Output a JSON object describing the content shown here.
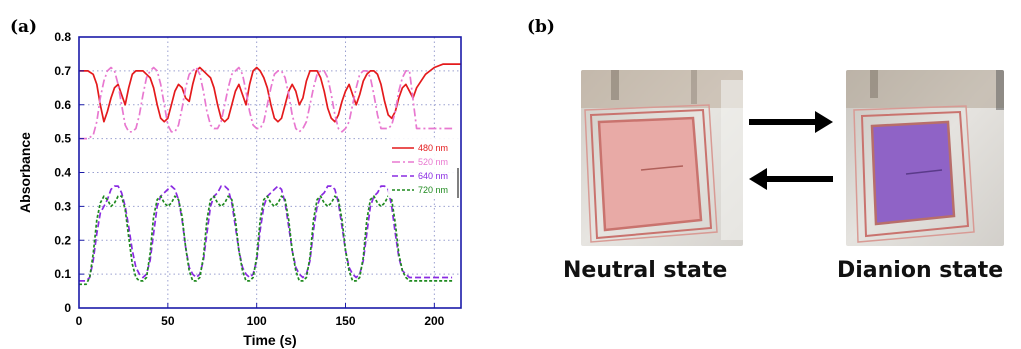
{
  "panels": {
    "a": "(a)",
    "b": "(b)"
  },
  "photos": {
    "neutral_label": "Neutral state",
    "dianion_label": "Dianion state"
  },
  "chart_data": {
    "type": "line",
    "xlabel": "Time (s)",
    "ylabel": "Absorbance",
    "xlim": [
      0,
      215
    ],
    "ylim": [
      0,
      0.8
    ],
    "xticks": [
      0,
      50,
      100,
      150,
      200
    ],
    "yticks": [
      0,
      0.1,
      0.2,
      0.3,
      0.4,
      0.5,
      0.6,
      0.7,
      0.8
    ],
    "grid": "dotted",
    "legend_position": "right",
    "series": [
      {
        "name": "480 nm",
        "color": "#e41a1c",
        "style": "solid",
        "x": [
          0,
          5,
          8,
          10,
          12,
          14,
          16,
          18,
          20,
          22,
          24,
          26,
          28,
          30,
          32,
          34,
          36,
          38,
          40,
          42,
          44,
          46,
          48,
          50,
          52,
          54,
          56,
          58,
          60,
          62,
          64,
          66,
          68,
          70,
          72,
          74,
          76,
          78,
          80,
          82,
          84,
          86,
          88,
          90,
          92,
          94,
          96,
          98,
          100,
          102,
          104,
          106,
          108,
          110,
          112,
          114,
          116,
          118,
          120,
          122,
          124,
          126,
          128,
          130,
          132,
          134,
          136,
          138,
          140,
          142,
          144,
          146,
          148,
          150,
          152,
          154,
          156,
          158,
          160,
          162,
          164,
          166,
          168,
          170,
          172,
          174,
          176,
          178,
          180,
          182,
          184,
          186,
          188,
          190,
          195,
          200,
          205,
          210,
          215
        ],
        "y": [
          0.7,
          0.7,
          0.69,
          0.66,
          0.6,
          0.55,
          0.58,
          0.62,
          0.65,
          0.66,
          0.63,
          0.6,
          0.65,
          0.69,
          0.7,
          0.7,
          0.7,
          0.69,
          0.68,
          0.65,
          0.6,
          0.56,
          0.55,
          0.56,
          0.6,
          0.64,
          0.66,
          0.65,
          0.62,
          0.61,
          0.66,
          0.7,
          0.71,
          0.7,
          0.69,
          0.68,
          0.65,
          0.6,
          0.56,
          0.55,
          0.56,
          0.6,
          0.64,
          0.66,
          0.63,
          0.6,
          0.66,
          0.7,
          0.71,
          0.7,
          0.68,
          0.65,
          0.6,
          0.56,
          0.55,
          0.56,
          0.6,
          0.64,
          0.66,
          0.64,
          0.6,
          0.62,
          0.67,
          0.7,
          0.7,
          0.7,
          0.68,
          0.64,
          0.59,
          0.56,
          0.55,
          0.57,
          0.61,
          0.64,
          0.66,
          0.63,
          0.6,
          0.63,
          0.67,
          0.69,
          0.7,
          0.7,
          0.69,
          0.66,
          0.61,
          0.57,
          0.56,
          0.58,
          0.62,
          0.65,
          0.66,
          0.64,
          0.62,
          0.65,
          0.69,
          0.71,
          0.72,
          0.72,
          0.72
        ]
      },
      {
        "name": "520 nm",
        "color": "#e878d0",
        "style": "dashdot",
        "x": [
          0,
          5,
          8,
          10,
          12,
          14,
          16,
          18,
          20,
          22,
          24,
          26,
          28,
          30,
          32,
          34,
          36,
          38,
          40,
          42,
          44,
          46,
          48,
          50,
          52,
          54,
          56,
          58,
          60,
          62,
          64,
          66,
          68,
          70,
          72,
          74,
          76,
          78,
          80,
          82,
          84,
          86,
          88,
          90,
          92,
          94,
          96,
          98,
          100,
          102,
          104,
          106,
          108,
          110,
          112,
          114,
          116,
          118,
          120,
          122,
          124,
          126,
          128,
          130,
          132,
          134,
          136,
          138,
          140,
          142,
          144,
          146,
          148,
          150,
          152,
          154,
          156,
          158,
          160,
          162,
          164,
          166,
          168,
          170,
          172,
          174,
          176,
          178,
          180,
          182,
          184,
          186,
          190,
          200,
          210
        ],
        "y": [
          0.5,
          0.5,
          0.51,
          0.55,
          0.62,
          0.67,
          0.7,
          0.71,
          0.7,
          0.66,
          0.6,
          0.54,
          0.52,
          0.52,
          0.53,
          0.57,
          0.63,
          0.68,
          0.7,
          0.71,
          0.7,
          0.66,
          0.6,
          0.54,
          0.52,
          0.52,
          0.54,
          0.59,
          0.65,
          0.69,
          0.7,
          0.71,
          0.69,
          0.64,
          0.58,
          0.54,
          0.53,
          0.53,
          0.55,
          0.6,
          0.65,
          0.69,
          0.7,
          0.71,
          0.69,
          0.64,
          0.58,
          0.54,
          0.53,
          0.53,
          0.55,
          0.6,
          0.65,
          0.69,
          0.7,
          0.7,
          0.68,
          0.63,
          0.57,
          0.53,
          0.52,
          0.53,
          0.55,
          0.6,
          0.65,
          0.69,
          0.7,
          0.7,
          0.68,
          0.63,
          0.57,
          0.53,
          0.52,
          0.53,
          0.55,
          0.6,
          0.65,
          0.69,
          0.7,
          0.7,
          0.68,
          0.63,
          0.57,
          0.53,
          0.53,
          0.53,
          0.54,
          0.58,
          0.64,
          0.68,
          0.7,
          0.7,
          0.53,
          0.53,
          0.53
        ]
      },
      {
        "name": "640 nm",
        "color": "#8a2be2",
        "style": "dashed",
        "x": [
          0,
          4,
          6,
          8,
          10,
          12,
          14,
          16,
          18,
          20,
          22,
          24,
          26,
          28,
          30,
          32,
          34,
          36,
          38,
          40,
          42,
          44,
          46,
          48,
          50,
          52,
          54,
          56,
          58,
          60,
          62,
          64,
          66,
          68,
          70,
          72,
          74,
          76,
          78,
          80,
          82,
          84,
          86,
          88,
          90,
          92,
          94,
          96,
          98,
          100,
          102,
          104,
          106,
          108,
          110,
          112,
          114,
          116,
          118,
          120,
          122,
          124,
          126,
          128,
          130,
          132,
          134,
          136,
          138,
          140,
          142,
          144,
          146,
          148,
          150,
          152,
          154,
          156,
          158,
          160,
          162,
          164,
          166,
          168,
          170,
          172,
          174,
          176,
          178,
          180,
          182,
          184,
          186,
          188,
          190,
          200,
          210
        ],
        "y": [
          0.08,
          0.08,
          0.09,
          0.14,
          0.22,
          0.28,
          0.3,
          0.32,
          0.35,
          0.36,
          0.36,
          0.34,
          0.3,
          0.24,
          0.17,
          0.12,
          0.1,
          0.09,
          0.1,
          0.14,
          0.22,
          0.3,
          0.33,
          0.34,
          0.35,
          0.36,
          0.35,
          0.32,
          0.26,
          0.18,
          0.12,
          0.1,
          0.09,
          0.1,
          0.14,
          0.22,
          0.3,
          0.33,
          0.34,
          0.36,
          0.36,
          0.35,
          0.31,
          0.24,
          0.17,
          0.12,
          0.1,
          0.09,
          0.1,
          0.14,
          0.23,
          0.3,
          0.33,
          0.34,
          0.35,
          0.36,
          0.35,
          0.31,
          0.24,
          0.17,
          0.12,
          0.1,
          0.09,
          0.1,
          0.14,
          0.23,
          0.3,
          0.33,
          0.34,
          0.36,
          0.36,
          0.35,
          0.31,
          0.24,
          0.17,
          0.12,
          0.1,
          0.09,
          0.1,
          0.14,
          0.22,
          0.3,
          0.33,
          0.34,
          0.36,
          0.36,
          0.35,
          0.3,
          0.22,
          0.15,
          0.11,
          0.1,
          0.09,
          0.09,
          0.09,
          0.09,
          0.09
        ]
      },
      {
        "name": "720 nm",
        "color": "#1f8a1f",
        "style": "dotted",
        "x": [
          0,
          4,
          6,
          8,
          10,
          12,
          14,
          16,
          18,
          20,
          22,
          24,
          26,
          28,
          30,
          32,
          34,
          36,
          38,
          40,
          42,
          44,
          46,
          48,
          50,
          52,
          54,
          56,
          58,
          60,
          62,
          64,
          66,
          68,
          70,
          72,
          74,
          76,
          78,
          80,
          82,
          84,
          86,
          88,
          90,
          92,
          94,
          96,
          98,
          100,
          102,
          104,
          106,
          108,
          110,
          112,
          114,
          116,
          118,
          120,
          122,
          124,
          126,
          128,
          130,
          132,
          134,
          136,
          138,
          140,
          142,
          144,
          146,
          148,
          150,
          152,
          154,
          156,
          158,
          160,
          162,
          164,
          166,
          168,
          170,
          172,
          174,
          176,
          178,
          180,
          182,
          184,
          186,
          188,
          190,
          200,
          210
        ],
        "y": [
          0.07,
          0.07,
          0.09,
          0.16,
          0.26,
          0.31,
          0.33,
          0.32,
          0.3,
          0.31,
          0.33,
          0.33,
          0.29,
          0.21,
          0.13,
          0.09,
          0.08,
          0.08,
          0.09,
          0.16,
          0.27,
          0.32,
          0.33,
          0.31,
          0.3,
          0.31,
          0.33,
          0.32,
          0.27,
          0.18,
          0.11,
          0.08,
          0.08,
          0.09,
          0.15,
          0.26,
          0.32,
          0.33,
          0.31,
          0.3,
          0.31,
          0.33,
          0.32,
          0.26,
          0.17,
          0.11,
          0.08,
          0.08,
          0.09,
          0.15,
          0.26,
          0.32,
          0.33,
          0.31,
          0.3,
          0.31,
          0.33,
          0.32,
          0.26,
          0.17,
          0.11,
          0.08,
          0.08,
          0.09,
          0.15,
          0.26,
          0.32,
          0.33,
          0.31,
          0.3,
          0.31,
          0.33,
          0.32,
          0.26,
          0.17,
          0.11,
          0.08,
          0.08,
          0.09,
          0.15,
          0.26,
          0.32,
          0.33,
          0.31,
          0.3,
          0.31,
          0.33,
          0.32,
          0.25,
          0.16,
          0.11,
          0.09,
          0.08,
          0.08,
          0.08,
          0.08,
          0.08
        ]
      }
    ]
  },
  "colors": {
    "axis_frame": "#1a1aa8",
    "grid": "#9aa0d0",
    "arrow": "#000000"
  }
}
